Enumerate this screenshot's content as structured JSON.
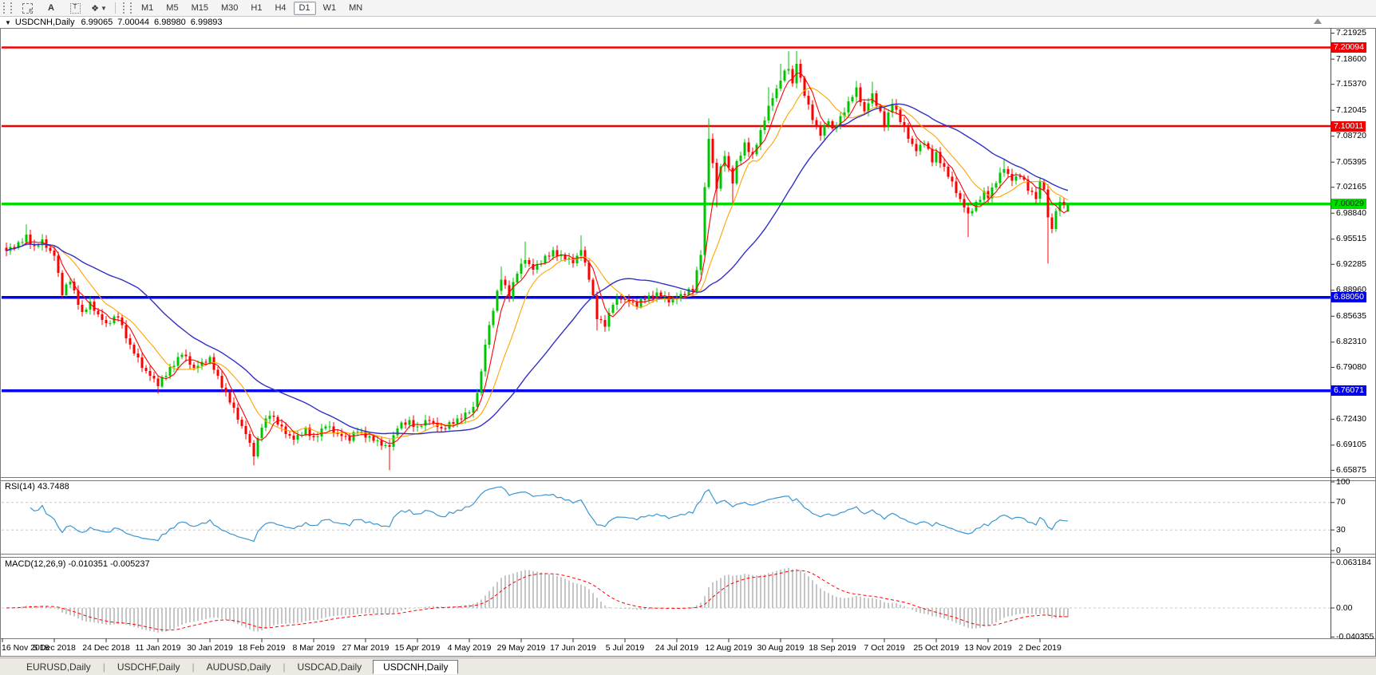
{
  "toolbar": {
    "icons": [
      {
        "name": "chart-frame-tool-icon",
        "glyph": "F"
      },
      {
        "name": "text-label-tool-icon",
        "glyph": "A"
      },
      {
        "name": "text-box-tool-icon",
        "glyph": "T"
      },
      {
        "name": "arrow-objects-tool-icon",
        "glyph": "❖"
      }
    ],
    "timeframes": [
      {
        "label": "M1",
        "active": false
      },
      {
        "label": "M5",
        "active": false
      },
      {
        "label": "M15",
        "active": false
      },
      {
        "label": "M30",
        "active": false
      },
      {
        "label": "H1",
        "active": false
      },
      {
        "label": "H4",
        "active": false
      },
      {
        "label": "D1",
        "active": true
      },
      {
        "label": "W1",
        "active": false
      },
      {
        "label": "MN",
        "active": false
      }
    ]
  },
  "chart_data": {
    "type": "candlestick",
    "symbol": "USDCNH,Daily",
    "title_ohlc": {
      "open": "6.99065",
      "high": "7.00044",
      "low": "6.98980",
      "close": "6.99893"
    },
    "ylim": [
      6.65,
      7.226
    ],
    "price_ticks": [
      "7.21925",
      "7.18600",
      "7.15370",
      "7.12045",
      "7.08720",
      "7.05395",
      "7.02165",
      "6.98840",
      "6.95515",
      "6.92285",
      "6.88960",
      "6.85635",
      "6.82310",
      "6.79080",
      "6.75755",
      "6.72430",
      "6.69105",
      "6.65875"
    ],
    "x_labels": [
      "16 Nov 2018",
      "5 Dec 2018",
      "24 Dec 2018",
      "11 Jan 2019",
      "30 Jan 2019",
      "18 Feb 2019",
      "8 Mar 2019",
      "27 Mar 2019",
      "15 Apr 2019",
      "4 May 2019",
      "29 May 2019",
      "17 Jun 2019",
      "5 Jul 2019",
      "24 Jul 2019",
      "12 Aug 2019",
      "30 Aug 2019",
      "18 Sep 2019",
      "7 Oct 2019",
      "25 Oct 2019",
      "13 Nov 2019",
      "2 Dec 2019"
    ],
    "levels": [
      {
        "label": "7.20094",
        "value": 7.20094,
        "color": "#f00000",
        "text_color": "#ffffff",
        "thickness": 2.5
      },
      {
        "label": "7.10011",
        "value": 7.10011,
        "color": "#f00000",
        "text_color": "#ffffff",
        "thickness": 2.5
      },
      {
        "label": "7.00029",
        "value": 7.00029,
        "color": "#00dc00",
        "text_color": "#004000",
        "thickness": 3.5
      },
      {
        "label": "6.88050",
        "value": 6.8805,
        "color": "#0000f0",
        "text_color": "#ffffff",
        "thickness": 3.5
      },
      {
        "label": "6.76071",
        "value": 6.76071,
        "color": "#0000f0",
        "text_color": "#ffffff",
        "thickness": 3.5
      }
    ],
    "candle_count": 267,
    "close_waypoints": [
      [
        0,
        6.94
      ],
      [
        3,
        6.948
      ],
      [
        5,
        6.96
      ],
      [
        7,
        6.944
      ],
      [
        9,
        6.952
      ],
      [
        12,
        6.934
      ],
      [
        14,
        6.885
      ],
      [
        16,
        6.903
      ],
      [
        19,
        6.86
      ],
      [
        21,
        6.872
      ],
      [
        25,
        6.845
      ],
      [
        28,
        6.857
      ],
      [
        31,
        6.818
      ],
      [
        34,
        6.792
      ],
      [
        38,
        6.768
      ],
      [
        41,
        6.79
      ],
      [
        44,
        6.808
      ],
      [
        47,
        6.79
      ],
      [
        51,
        6.801
      ],
      [
        54,
        6.768
      ],
      [
        57,
        6.736
      ],
      [
        60,
        6.705
      ],
      [
        62,
        6.678
      ],
      [
        64,
        6.716
      ],
      [
        66,
        6.732
      ],
      [
        69,
        6.712
      ],
      [
        72,
        6.698
      ],
      [
        75,
        6.71
      ],
      [
        77,
        6.7
      ],
      [
        80,
        6.716
      ],
      [
        83,
        6.705
      ],
      [
        86,
        6.698
      ],
      [
        88,
        6.711
      ],
      [
        90,
        6.704
      ],
      [
        93,
        6.694
      ],
      [
        96,
        6.689
      ],
      [
        98,
        6.714
      ],
      [
        101,
        6.722
      ],
      [
        103,
        6.713
      ],
      [
        106,
        6.724
      ],
      [
        109,
        6.71
      ],
      [
        112,
        6.721
      ],
      [
        115,
        6.731
      ],
      [
        117,
        6.737
      ],
      [
        118,
        6.76
      ],
      [
        119,
        6.785
      ],
      [
        120,
        6.82
      ],
      [
        122,
        6.865
      ],
      [
        124,
        6.906
      ],
      [
        126,
        6.884
      ],
      [
        128,
        6.912
      ],
      [
        130,
        6.93
      ],
      [
        132,
        6.916
      ],
      [
        134,
        6.926
      ],
      [
        137,
        6.94
      ],
      [
        140,
        6.93
      ],
      [
        142,
        6.926
      ],
      [
        144,
        6.941
      ],
      [
        146,
        6.905
      ],
      [
        148,
        6.855
      ],
      [
        150,
        6.846
      ],
      [
        152,
        6.872
      ],
      [
        154,
        6.88
      ],
      [
        156,
        6.875
      ],
      [
        158,
        6.87
      ],
      [
        160,
        6.88
      ],
      [
        163,
        6.885
      ],
      [
        166,
        6.876
      ],
      [
        168,
        6.88
      ],
      [
        170,
        6.885
      ],
      [
        172,
        6.891
      ],
      [
        174,
        6.938
      ],
      [
        175,
        7.02
      ],
      [
        176,
        7.085
      ],
      [
        177,
        7.05
      ],
      [
        178,
        7.022
      ],
      [
        179,
        7.048
      ],
      [
        180,
        7.062
      ],
      [
        181,
        7.044
      ],
      [
        182,
        7.028
      ],
      [
        183,
        7.052
      ],
      [
        185,
        7.078
      ],
      [
        187,
        7.062
      ],
      [
        189,
        7.092
      ],
      [
        191,
        7.126
      ],
      [
        193,
        7.146
      ],
      [
        194,
        7.16
      ],
      [
        196,
        7.176
      ],
      [
        197,
        7.154
      ],
      [
        198,
        7.183
      ],
      [
        199,
        7.16
      ],
      [
        200,
        7.14
      ],
      [
        202,
        7.11
      ],
      [
        204,
        7.088
      ],
      [
        206,
        7.108
      ],
      [
        207,
        7.094
      ],
      [
        209,
        7.112
      ],
      [
        211,
        7.13
      ],
      [
        213,
        7.147
      ],
      [
        215,
        7.119
      ],
      [
        217,
        7.14
      ],
      [
        219,
        7.116
      ],
      [
        220,
        7.101
      ],
      [
        222,
        7.132
      ],
      [
        224,
        7.106
      ],
      [
        226,
        7.086
      ],
      [
        228,
        7.068
      ],
      [
        230,
        7.08
      ],
      [
        232,
        7.056
      ],
      [
        233,
        7.066
      ],
      [
        235,
        7.046
      ],
      [
        237,
        7.026
      ],
      [
        239,
        7.006
      ],
      [
        241,
        6.986
      ],
      [
        243,
        7.0
      ],
      [
        245,
        7.016
      ],
      [
        246,
        7.011
      ],
      [
        248,
        7.028
      ],
      [
        250,
        7.047
      ],
      [
        252,
        7.03
      ],
      [
        254,
        7.037
      ],
      [
        256,
        7.02
      ],
      [
        258,
        7.01
      ],
      [
        259,
        7.027
      ],
      [
        260,
        7.02
      ],
      [
        261,
        6.98
      ],
      [
        262,
        6.97
      ],
      [
        263,
        6.991
      ],
      [
        264,
        7.003
      ],
      [
        265,
        6.997
      ],
      [
        266,
        6.99893
      ]
    ],
    "noise_pattern": [
      0,
      0.7,
      -0.5,
      1,
      -0.8,
      0.3,
      -1,
      0.6,
      -0.3,
      0.9,
      -0.6,
      0.1
    ],
    "noise_amp": 0.0032,
    "default_wick": 0.0045,
    "wick_spikes": [
      [
        5,
        "h",
        6.974
      ],
      [
        38,
        "l",
        6.757
      ],
      [
        62,
        "l",
        6.665
      ],
      [
        96,
        "l",
        6.659
      ],
      [
        124,
        "h",
        6.92
      ],
      [
        130,
        "h",
        6.952
      ],
      [
        144,
        "h",
        6.96
      ],
      [
        148,
        "l",
        6.838
      ],
      [
        176,
        "h",
        7.11
      ],
      [
        178,
        "l",
        6.996
      ],
      [
        182,
        "l",
        6.999
      ],
      [
        191,
        "h",
        7.15
      ],
      [
        194,
        "h",
        7.18
      ],
      [
        196,
        "h",
        7.196
      ],
      [
        198,
        "h",
        7.1965
      ],
      [
        213,
        "h",
        7.158
      ],
      [
        217,
        "h",
        7.157
      ],
      [
        241,
        "l",
        6.958
      ],
      [
        250,
        "h",
        7.058
      ],
      [
        261,
        "l",
        6.924
      ]
    ],
    "last_candle": [
      6.99065,
      7.00044,
      6.9898,
      6.99893
    ],
    "bull_color": "#00c400",
    "bear_color": "#ff0000",
    "moving_averages": [
      {
        "name": "ma-fast",
        "period": 5,
        "color": "#ff0000"
      },
      {
        "name": "ma-mid",
        "period": 12,
        "color": "#ffa500"
      },
      {
        "name": "ma-slow",
        "period": 34,
        "color": "#3030c8"
      }
    ]
  },
  "rsi_panel": {
    "label": "RSI(14) 43.7488",
    "period": 14,
    "ticks": [
      [
        "100",
        100
      ],
      [
        "70",
        70
      ],
      [
        "30",
        30
      ],
      [
        "0",
        0
      ]
    ],
    "levels": [
      70,
      30
    ],
    "line_color": "#3a96d2"
  },
  "macd_panel": {
    "label": "MACD(12,26,9) -0.010351 -0.005237",
    "fast": 12,
    "slow": 26,
    "signal": 9,
    "ticks": [
      [
        "0.063184",
        0.063184
      ],
      [
        "0.00",
        0
      ],
      [
        "-0.040355",
        -0.040355
      ]
    ],
    "hist_color": "#a0a0a0",
    "signal_color": "#ff0000"
  },
  "tabs": [
    {
      "label": "EURUSD,Daily",
      "active": false
    },
    {
      "label": "USDCHF,Daily",
      "active": false
    },
    {
      "label": "AUDUSD,Daily",
      "active": false
    },
    {
      "label": "USDCAD,Daily",
      "active": false
    },
    {
      "label": "USDCNH,Daily",
      "active": true
    }
  ]
}
